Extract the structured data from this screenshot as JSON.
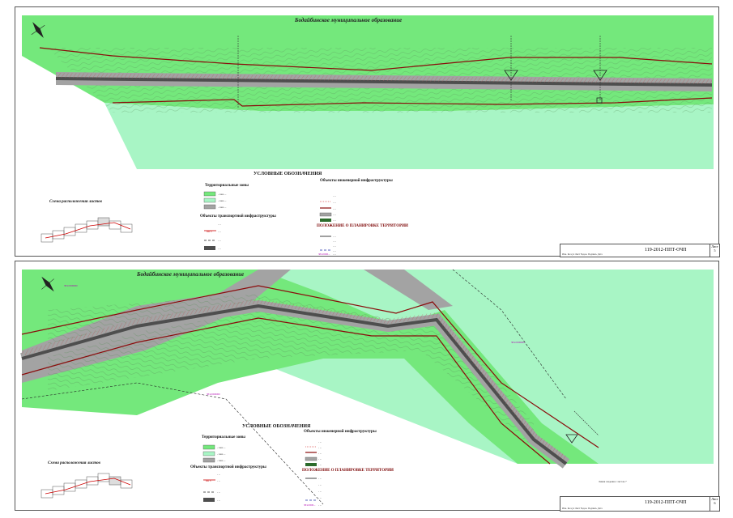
{
  "colors": {
    "zone_green": "#74e87c",
    "zone_light": "#a8f5c5",
    "zone_gray": "#a3a3a3",
    "boundary_red": "#8a0b0b",
    "road_dark": "#4e4e4e",
    "hatch": "#b06060"
  },
  "icons": [
    "north-arrow-icon",
    "bridge-icon",
    "pipe-icon"
  ],
  "sheet1": {
    "muni_title": "Бодайбинское муниципальное образование",
    "legend_title": "УСЛОВНЫЕ ОБОЗНАЧЕНИЯ",
    "scheme_title": "Схема расположения листов",
    "zones_title": "Территориальные зоны",
    "zones": [
      "- зона ...",
      "- зона ...",
      "- зона ..."
    ],
    "transport_title": "Объекты транспортной инфраструктуры",
    "transport_items": [
      "- ...",
      "- ...",
      "- ...",
      "- ..."
    ],
    "transport_marks": [
      "",
      "ПК 3",
      "",
      ""
    ],
    "eng_title": "Объекты инженерной инфраструктуры",
    "eng_items": [
      "- ...",
      "- ...",
      "- ...",
      "- ...",
      "- ..."
    ],
    "plan_title": "ПОЛОЖЕНИЕ О ПЛАНИРОВКЕ ТЕРРИТОРИИ",
    "plan_items": [
      "- ...",
      "- ...",
      "- ...",
      "- ...",
      "- ..."
    ],
    "plan_marks": [
      "",
      "",
      "",
      "",
      "38:22:000..."
    ],
    "code": "119-2012-ППТ-ОЧП",
    "page_label": "Лист",
    "page_num": "5",
    "table_header": "Изм. Кол.уч Лист №док. Подпись Дата"
  },
  "sheet2": {
    "muni_title": "Бодайбинское муниципальное образование",
    "legend_title": "УСЛОВНЫЕ ОБОЗНАЧЕНИЯ",
    "scheme_title": "Схема расположения листов",
    "zones_title": "Территориальные зоны",
    "zones": [
      "- зона ...",
      "- зона ...",
      "- зона ..."
    ],
    "transport_title": "Объекты транспортной инфраструктуры",
    "transport_items": [
      "- ...",
      "- ...",
      "- ...",
      "- ..."
    ],
    "transport_marks": [
      "",
      "ПК 3",
      "",
      ""
    ],
    "eng_title": "Объекты инженерной инфраструктуры",
    "eng_items": [
      "- ...",
      "- ...",
      "- ...",
      "- ...",
      "- ..."
    ],
    "plan_title": "ПОЛОЖЕНИЕ О ПЛАНИРОВКЕ ТЕРРИТОРИИ",
    "plan_items": [
      "- ...",
      "- ...",
      "- ...",
      "- ...",
      "- ..."
    ],
    "plan_marks": [
      "",
      "",
      "",
      "",
      "38:22:000..."
    ],
    "cadastral": [
      "38:22:000000",
      "38:22:000000",
      "38:22:000000"
    ],
    "match_line": "Линия сведения с листом 7",
    "code": "119-2012-ППТ-ОЧП",
    "page_label": "Лист",
    "page_num": "6",
    "table_header": "Изм. Кол.уч Лист №док. Подпись Дата"
  }
}
